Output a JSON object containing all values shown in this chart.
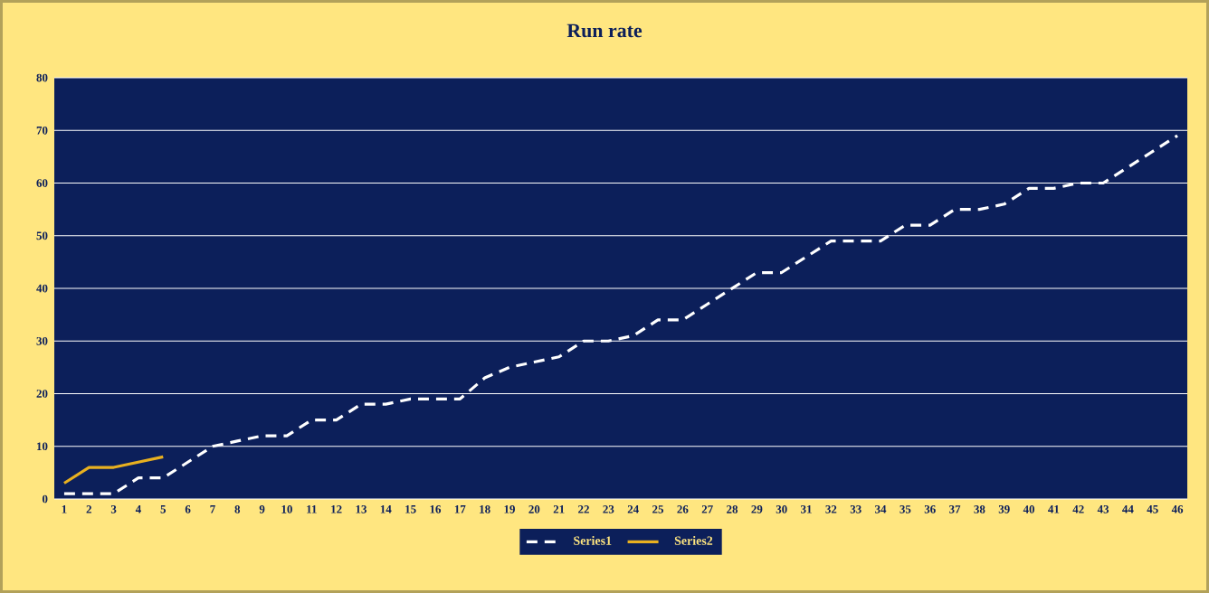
{
  "chart_data": {
    "type": "line",
    "title": "Run rate",
    "categories": [
      "1",
      "2",
      "3",
      "4",
      "5",
      "6",
      "7",
      "8",
      "9",
      "10",
      "11",
      "12",
      "13",
      "14",
      "15",
      "16",
      "17",
      "18",
      "19",
      "20",
      "21",
      "22",
      "23",
      "24",
      "25",
      "26",
      "27",
      "28",
      "29",
      "30",
      "31",
      "32",
      "33",
      "34",
      "35",
      "36",
      "37",
      "38",
      "39",
      "40",
      "41",
      "42",
      "43",
      "44",
      "45",
      "46"
    ],
    "series": [
      {
        "name": "Series1",
        "color": "#ffffff",
        "line_style": "dashed",
        "values": [
          1,
          1,
          1,
          4,
          4,
          7,
          10,
          11,
          12,
          12,
          15,
          15,
          18,
          18,
          19,
          19,
          19,
          23,
          25,
          26,
          27,
          30,
          30,
          31,
          34,
          34,
          37,
          40,
          43,
          43,
          46,
          49,
          49,
          49,
          52,
          52,
          55,
          55,
          56,
          59,
          59,
          60,
          60,
          63,
          66,
          69
        ]
      },
      {
        "name": "Series2",
        "color": "#e8b020",
        "line_style": "solid",
        "values": [
          3,
          6,
          6,
          7,
          8,
          null,
          null,
          null,
          null,
          null,
          null,
          null,
          null,
          null,
          null,
          null,
          null,
          null,
          null,
          null,
          null,
          null,
          null,
          null,
          null,
          null,
          null,
          null,
          null,
          null,
          null,
          null,
          null,
          null,
          null,
          null,
          null,
          null,
          null,
          null,
          null,
          null,
          null,
          null,
          null,
          null
        ]
      }
    ],
    "ylim": [
      0,
      80
    ],
    "yticks": [
      0,
      10,
      20,
      30,
      40,
      50,
      60,
      70,
      80
    ],
    "grid": "y",
    "legend": "bottom",
    "marker": "none"
  }
}
